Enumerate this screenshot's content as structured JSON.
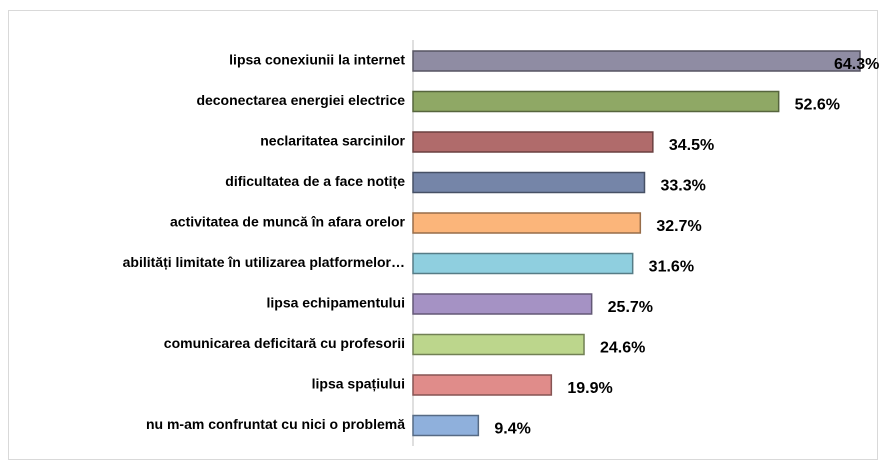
{
  "chart_data": {
    "type": "barh",
    "categories": [
      "lipsa conexiunii la internet",
      "deconectarea energiei electrice",
      "neclaritatea sarcinilor",
      "dificultatea de a face notițe",
      "activitatea de muncă în afara orelor",
      "abilități limitate în utilizarea platformelor…",
      "lipsa echipamentului",
      "comunicarea deficitară cu profesorii",
      "lipsa spațiului",
      "nu m-am confruntat cu nici o problemă"
    ],
    "values": [
      64.3,
      52.6,
      34.5,
      33.3,
      32.7,
      31.6,
      25.7,
      24.6,
      19.9,
      9.4
    ],
    "value_labels": [
      "64.3%",
      "52.6%",
      "34.5%",
      "33.3%",
      "32.7%",
      "31.6%",
      "25.7%",
      "24.6%",
      "19.9%",
      "9.4%"
    ],
    "colors": [
      "#8f8ca3",
      "#8fa865",
      "#b06b6b",
      "#7585a8",
      "#fbb57a",
      "#8fcfdf",
      "#a592c4",
      "#bcd68c",
      "#e08c8a",
      "#8fb0dc"
    ]
  }
}
